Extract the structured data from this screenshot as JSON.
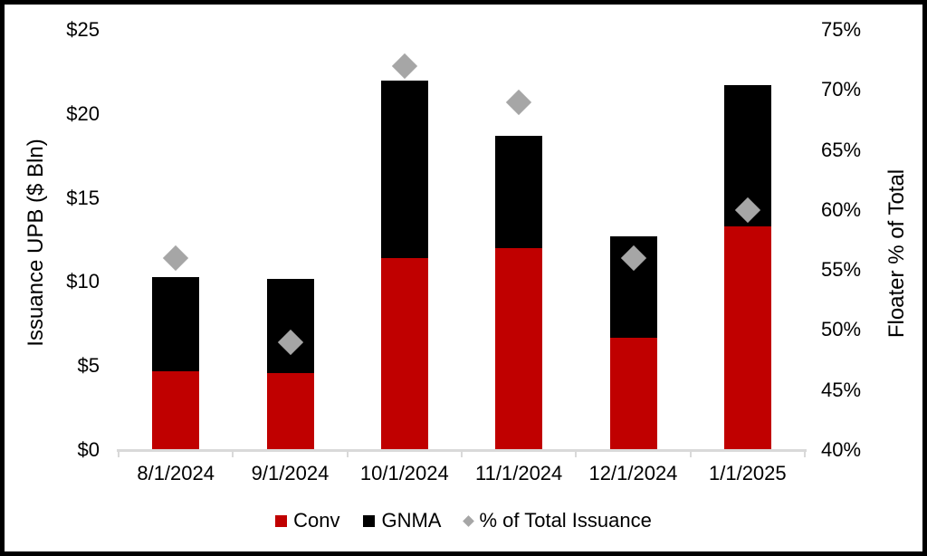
{
  "chart_data": {
    "type": "bar",
    "subtype": "stacked-bars-with-diamond-scatter-combo",
    "title": "",
    "categories": [
      "8/1/2024",
      "9/1/2024",
      "10/1/2024",
      "11/1/2024",
      "12/1/2024",
      "1/1/2025"
    ],
    "series": [
      {
        "name": "Conv",
        "type": "bar",
        "stacked": true,
        "axis": "left",
        "color": "#C00000",
        "values": [
          4.7,
          4.6,
          11.4,
          12.0,
          6.7,
          13.3
        ]
      },
      {
        "name": "GNMA",
        "type": "bar",
        "stacked": true,
        "axis": "left",
        "color": "#000000",
        "values": [
          5.6,
          5.6,
          10.6,
          6.7,
          6.0,
          8.4
        ]
      },
      {
        "name": "% of Total Issuance",
        "type": "scatter",
        "marker": "diamond",
        "axis": "right",
        "color": "#A6A6A6",
        "values": [
          56,
          49,
          72,
          69,
          56,
          60
        ]
      }
    ],
    "stacked_totals": [
      10.3,
      10.2,
      22.0,
      18.7,
      12.7,
      21.7
    ],
    "left_axis": {
      "label": "Issuance UPB ($ Bln)",
      "min": 0,
      "max": 25,
      "tick_step": 5,
      "ticks": [
        {
          "label": "$25",
          "value": 25
        },
        {
          "label": "$20",
          "value": 20
        },
        {
          "label": "$15",
          "value": 15
        },
        {
          "label": "$10",
          "value": 10
        },
        {
          "label": "$5",
          "value": 5
        },
        {
          "label": "$0",
          "value": 0
        }
      ]
    },
    "right_axis": {
      "label": "Floater % of Total",
      "min": 40,
      "max": 75,
      "tick_step": 5,
      "ticks": [
        {
          "label": "75%",
          "value": 75
        },
        {
          "label": "70%",
          "value": 70
        },
        {
          "label": "65%",
          "value": 65
        },
        {
          "label": "60%",
          "value": 60
        },
        {
          "label": "55%",
          "value": 55
        },
        {
          "label": "50%",
          "value": 50
        },
        {
          "label": "45%",
          "value": 45
        },
        {
          "label": "40%",
          "value": 40
        }
      ]
    },
    "layout_hints": {
      "gridlines": "off",
      "legend_position": "bottom-center",
      "axis_line_color": "#D9D9D9",
      "background_color": "#FFFFFF",
      "frame_border_color": "#000000"
    }
  }
}
